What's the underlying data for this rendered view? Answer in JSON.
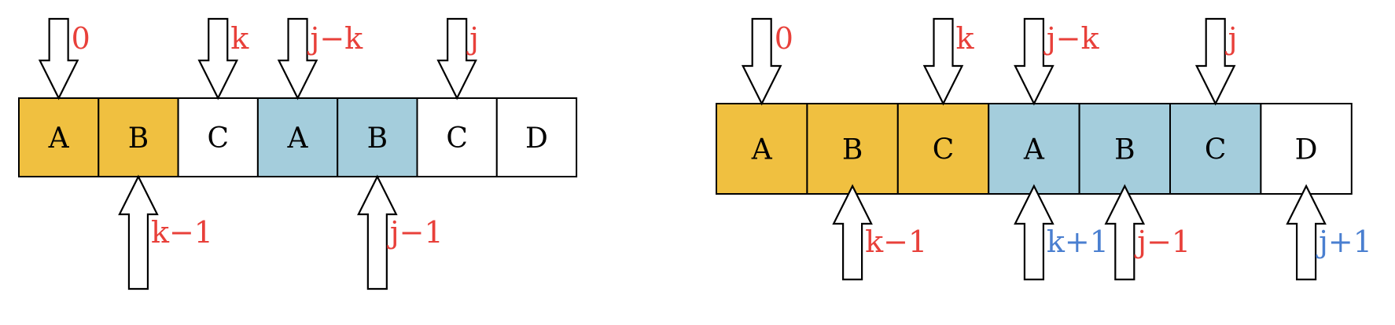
{
  "colors": {
    "orange": "#F0C040",
    "blue": "#A4CDDC",
    "white": "#FFFFFF",
    "red_label": "#E8403A",
    "blue_label": "#4A7FD0",
    "stroke": "#000000"
  },
  "panels": [
    {
      "id": "left",
      "cells": [
        {
          "text": "A",
          "fill": "orange"
        },
        {
          "text": "B",
          "fill": "orange"
        },
        {
          "text": "C",
          "fill": "white"
        },
        {
          "text": "A",
          "fill": "blue"
        },
        {
          "text": "B",
          "fill": "blue"
        },
        {
          "text": "C",
          "fill": "white"
        },
        {
          "text": "D",
          "fill": "white"
        }
      ],
      "top_pointers": [
        {
          "cell": 0,
          "label": "0",
          "color": "red_label"
        },
        {
          "cell": 2,
          "label": "k",
          "color": "red_label"
        },
        {
          "cell": 3,
          "label": "j−k",
          "color": "red_label"
        },
        {
          "cell": 5,
          "label": "j",
          "color": "red_label"
        }
      ],
      "bottom_pointers": [
        {
          "cell": 1,
          "label": "k−1",
          "color": "red_label"
        },
        {
          "cell": 4,
          "label": "j−1",
          "color": "red_label"
        }
      ]
    },
    {
      "id": "right",
      "cells": [
        {
          "text": "A",
          "fill": "orange"
        },
        {
          "text": "B",
          "fill": "orange"
        },
        {
          "text": "C",
          "fill": "orange"
        },
        {
          "text": "A",
          "fill": "blue"
        },
        {
          "text": "B",
          "fill": "blue"
        },
        {
          "text": "C",
          "fill": "blue"
        },
        {
          "text": "D",
          "fill": "white"
        }
      ],
      "top_pointers": [
        {
          "cell": 0,
          "label": "0",
          "color": "red_label"
        },
        {
          "cell": 2,
          "label": "k",
          "color": "red_label"
        },
        {
          "cell": 3,
          "label": "j−k",
          "color": "red_label"
        },
        {
          "cell": 5,
          "label": "j",
          "color": "red_label"
        }
      ],
      "bottom_pointers": [
        {
          "cell": 1,
          "label": "k−1",
          "color": "red_label"
        },
        {
          "cell": 3,
          "label": "k+1",
          "color": "blue_label"
        },
        {
          "cell": 4,
          "label": "j−1",
          "color": "red_label"
        },
        {
          "cell": 6,
          "label": "j+1",
          "color": "blue_label"
        }
      ]
    }
  ]
}
